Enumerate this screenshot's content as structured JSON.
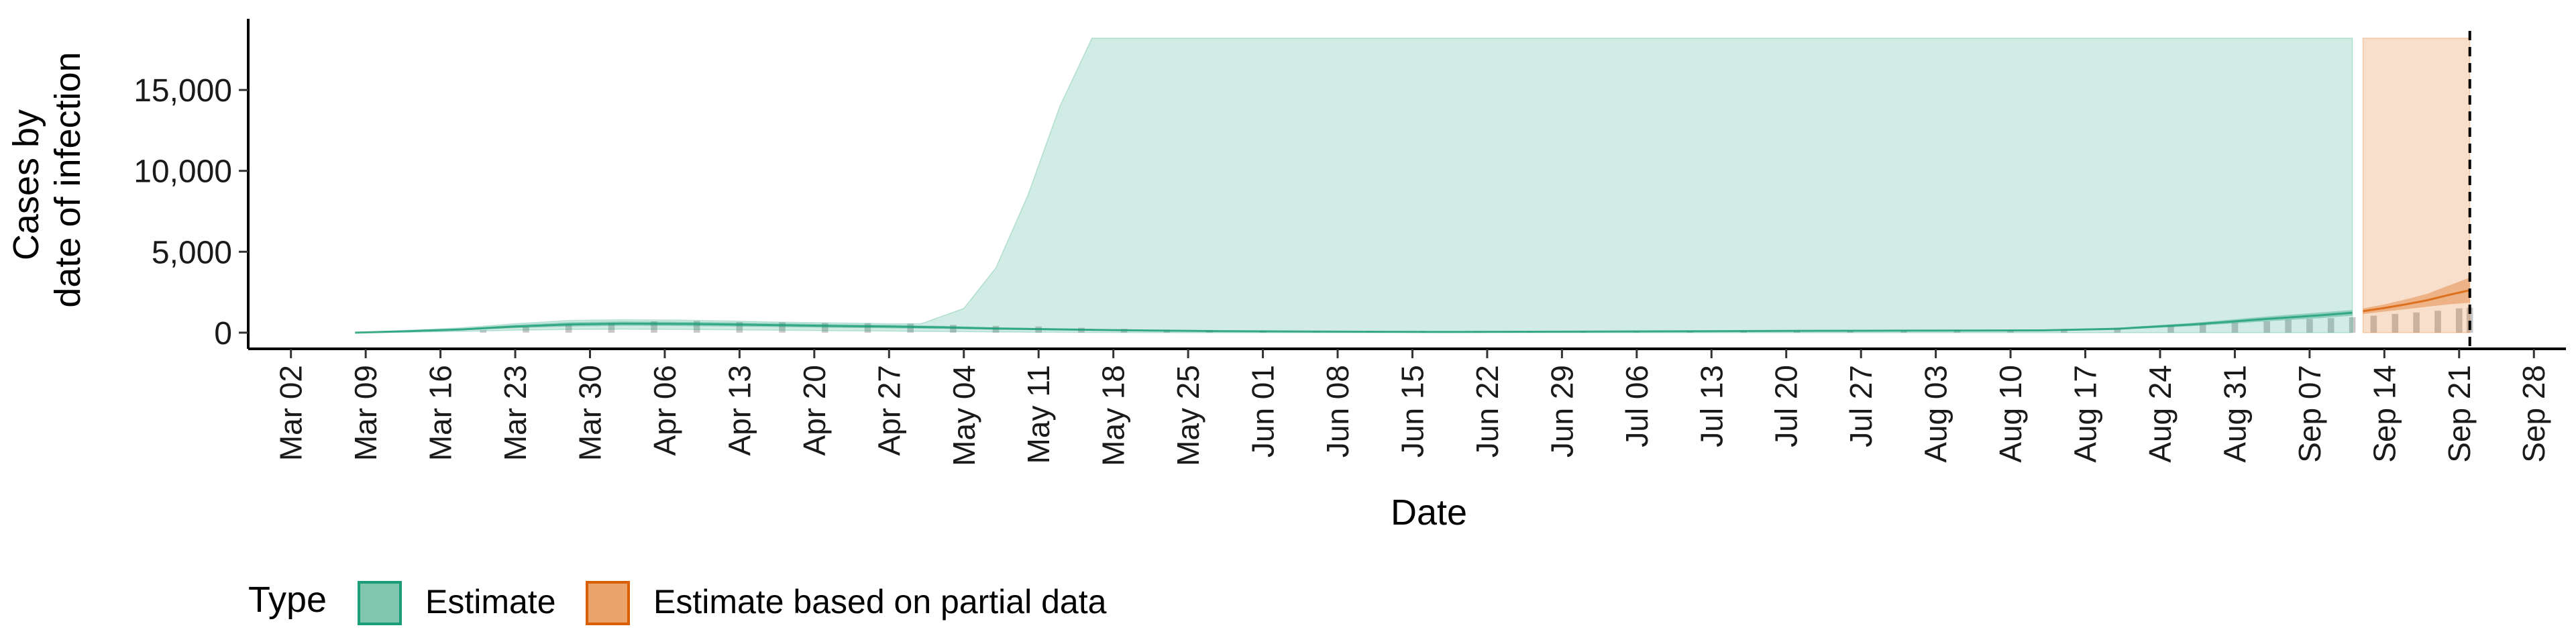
{
  "chart_data": {
    "type": "area",
    "xlabel": "Date",
    "ylabel_lines": [
      "Cases by",
      "date of infection"
    ],
    "ylim": [
      -1000,
      19400
    ],
    "y_ticks": [
      0,
      5000,
      10000,
      15000
    ],
    "y_tick_labels": [
      "0",
      "5,000",
      "10,000",
      "15,000"
    ],
    "x_range": [
      "2020-02-27",
      "2020-10-01"
    ],
    "x_ticks": [
      "2020-03-02",
      "2020-03-09",
      "2020-03-16",
      "2020-03-23",
      "2020-03-30",
      "2020-04-06",
      "2020-04-13",
      "2020-04-20",
      "2020-04-27",
      "2020-05-04",
      "2020-05-11",
      "2020-05-18",
      "2020-05-25",
      "2020-06-01",
      "2020-06-08",
      "2020-06-15",
      "2020-06-22",
      "2020-06-29",
      "2020-07-06",
      "2020-07-13",
      "2020-07-20",
      "2020-07-27",
      "2020-08-03",
      "2020-08-10",
      "2020-08-17",
      "2020-08-24",
      "2020-08-31",
      "2020-09-07",
      "2020-09-14",
      "2020-09-21",
      "2020-09-28"
    ],
    "x_tick_labels": [
      "Mar 02",
      "Mar 09",
      "Mar 16",
      "Mar 23",
      "Mar 30",
      "Apr 06",
      "Apr 13",
      "Apr 20",
      "Apr 27",
      "May 04",
      "May 11",
      "May 18",
      "May 25",
      "Jun 01",
      "Jun 08",
      "Jun 15",
      "Jun 22",
      "Jun 29",
      "Jul 06",
      "Jul 13",
      "Jul 20",
      "Jul 27",
      "Aug 03",
      "Aug 10",
      "Aug 17",
      "Aug 24",
      "Aug 31",
      "Sep 07",
      "Sep 14",
      "Sep 21",
      "Sep 28"
    ],
    "vline_date": "2020-09-22",
    "grid": false,
    "legend_position": "bottom",
    "legend": {
      "title": "Type",
      "items": [
        {
          "label": "Estimate",
          "fill": "#7fc7ae",
          "stroke": "#1b9e77"
        },
        {
          "label": "Estimate based on partial data",
          "fill": "#eba46b",
          "stroke": "#d95f02"
        }
      ]
    },
    "series": [
      {
        "name": "Estimate",
        "color": "#1b9e77",
        "outer_band": {
          "x": [
            "2020-03-08",
            "2020-03-13",
            "2020-03-18",
            "2020-03-23",
            "2020-03-28",
            "2020-04-02",
            "2020-04-07",
            "2020-04-12",
            "2020-04-17",
            "2020-04-22",
            "2020-04-27",
            "2020-04-30",
            "2020-05-04",
            "2020-05-07",
            "2020-05-10",
            "2020-05-13",
            "2020-05-16",
            "2020-05-20",
            "2020-05-25",
            "2020-06-01",
            "2020-06-08",
            "2020-06-15",
            "2020-06-22",
            "2020-06-29",
            "2020-07-06",
            "2020-07-13",
            "2020-07-20",
            "2020-07-27",
            "2020-08-03",
            "2020-08-10",
            "2020-08-17",
            "2020-08-24",
            "2020-08-31",
            "2020-09-06",
            "2020-09-11"
          ],
          "upper": [
            0,
            150,
            300,
            550,
            750,
            800,
            780,
            720,
            650,
            600,
            550,
            550,
            1500,
            4000,
            8500,
            14000,
            18200,
            18200,
            18200,
            18200,
            18200,
            18200,
            18200,
            18200,
            18200,
            18200,
            18200,
            18200,
            18200,
            18200,
            18200,
            18200,
            18200,
            18200,
            18200
          ],
          "lower": [
            0,
            30,
            80,
            150,
            200,
            220,
            200,
            180,
            150,
            120,
            100,
            80,
            60,
            40,
            30,
            20,
            10,
            5,
            0,
            0,
            0,
            0,
            0,
            0,
            0,
            0,
            0,
            0,
            0,
            0,
            0,
            0,
            0,
            0,
            0
          ]
        },
        "inner_band": {
          "x": [
            "2020-03-08",
            "2020-03-13",
            "2020-03-18",
            "2020-03-23",
            "2020-03-28",
            "2020-04-02",
            "2020-04-07",
            "2020-04-12",
            "2020-04-17",
            "2020-04-22",
            "2020-04-27",
            "2020-05-02",
            "2020-05-07",
            "2020-05-14",
            "2020-05-21",
            "2020-05-28",
            "2020-06-04",
            "2020-06-11",
            "2020-06-18",
            "2020-06-25",
            "2020-07-02",
            "2020-07-09",
            "2020-07-16",
            "2020-07-23",
            "2020-07-30",
            "2020-08-06",
            "2020-08-13",
            "2020-08-20",
            "2020-08-27",
            "2020-09-03",
            "2020-09-08",
            "2020-09-11"
          ],
          "upper": [
            0,
            120,
            260,
            480,
            650,
            700,
            680,
            640,
            580,
            520,
            480,
            420,
            330,
            250,
            180,
            130,
            100,
            80,
            70,
            80,
            90,
            110,
            130,
            150,
            160,
            170,
            180,
            300,
            600,
            1000,
            1250,
            1400
          ],
          "lower": [
            0,
            60,
            150,
            280,
            380,
            420,
            410,
            380,
            340,
            300,
            270,
            230,
            180,
            130,
            90,
            60,
            45,
            35,
            30,
            35,
            45,
            55,
            70,
            80,
            90,
            95,
            100,
            180,
            400,
            700,
            900,
            1050
          ]
        },
        "median": {
          "x": [
            "2020-03-08",
            "2020-03-13",
            "2020-03-18",
            "2020-03-23",
            "2020-03-28",
            "2020-04-02",
            "2020-04-07",
            "2020-04-12",
            "2020-04-17",
            "2020-04-22",
            "2020-04-27",
            "2020-05-02",
            "2020-05-07",
            "2020-05-14",
            "2020-05-21",
            "2020-05-28",
            "2020-06-04",
            "2020-06-11",
            "2020-06-18",
            "2020-06-25",
            "2020-07-02",
            "2020-07-09",
            "2020-07-16",
            "2020-07-23",
            "2020-07-30",
            "2020-08-06",
            "2020-08-13",
            "2020-08-20",
            "2020-08-27",
            "2020-09-03",
            "2020-09-08",
            "2020-09-11"
          ],
          "y": [
            0,
            90,
            200,
            380,
            510,
            560,
            545,
            510,
            460,
            410,
            375,
            325,
            255,
            190,
            135,
            95,
            72,
            58,
            50,
            58,
            68,
            82,
            100,
            115,
            125,
            132,
            140,
            240,
            500,
            850,
            1075,
            1225
          ]
        }
      },
      {
        "name": "Estimate based on partial data",
        "color": "#d95f02",
        "outer_band": {
          "x": [
            "2020-09-12",
            "2020-09-14",
            "2020-09-17",
            "2020-09-20",
            "2020-09-22"
          ],
          "upper": [
            18200,
            18200,
            18200,
            18200,
            18200
          ],
          "lower": [
            0,
            0,
            0,
            0,
            0
          ]
        },
        "inner_band": {
          "x": [
            "2020-09-12",
            "2020-09-14",
            "2020-09-16",
            "2020-09-18",
            "2020-09-20",
            "2020-09-22"
          ],
          "upper": [
            1500,
            1750,
            2050,
            2400,
            2900,
            3400
          ],
          "lower": [
            1150,
            1300,
            1450,
            1600,
            1750,
            1850
          ]
        },
        "median": {
          "x": [
            "2020-09-12",
            "2020-09-14",
            "2020-09-16",
            "2020-09-18",
            "2020-09-20",
            "2020-09-22"
          ],
          "y": [
            1325,
            1525,
            1750,
            2000,
            2325,
            2625
          ]
        }
      }
    ],
    "reported_cases": {
      "color": "#bdbdbd",
      "x": [
        "2020-03-20",
        "2020-03-24",
        "2020-03-28",
        "2020-04-01",
        "2020-04-05",
        "2020-04-09",
        "2020-04-13",
        "2020-04-17",
        "2020-04-21",
        "2020-04-25",
        "2020-04-29",
        "2020-05-03",
        "2020-05-07",
        "2020-05-11",
        "2020-05-15",
        "2020-05-19",
        "2020-05-23",
        "2020-05-27",
        "2020-06-01",
        "2020-06-06",
        "2020-06-11",
        "2020-06-16",
        "2020-06-21",
        "2020-06-26",
        "2020-07-01",
        "2020-07-06",
        "2020-07-11",
        "2020-07-16",
        "2020-07-21",
        "2020-07-26",
        "2020-07-31",
        "2020-08-05",
        "2020-08-10",
        "2020-08-15",
        "2020-08-20",
        "2020-08-25",
        "2020-08-28",
        "2020-08-31",
        "2020-09-03",
        "2020-09-05",
        "2020-09-07",
        "2020-09-09",
        "2020-09-11",
        "2020-09-13",
        "2020-09-15",
        "2020-09-17",
        "2020-09-19",
        "2020-09-21",
        "2020-09-22"
      ],
      "y": [
        150,
        350,
        500,
        600,
        700,
        720,
        650,
        640,
        600,
        580,
        560,
        480,
        420,
        380,
        300,
        230,
        180,
        150,
        120,
        100,
        90,
        80,
        70,
        70,
        80,
        90,
        100,
        120,
        140,
        150,
        160,
        170,
        180,
        220,
        300,
        450,
        550,
        620,
        700,
        800,
        850,
        900,
        950,
        1050,
        1150,
        1250,
        1350,
        1500,
        1550
      ]
    }
  }
}
